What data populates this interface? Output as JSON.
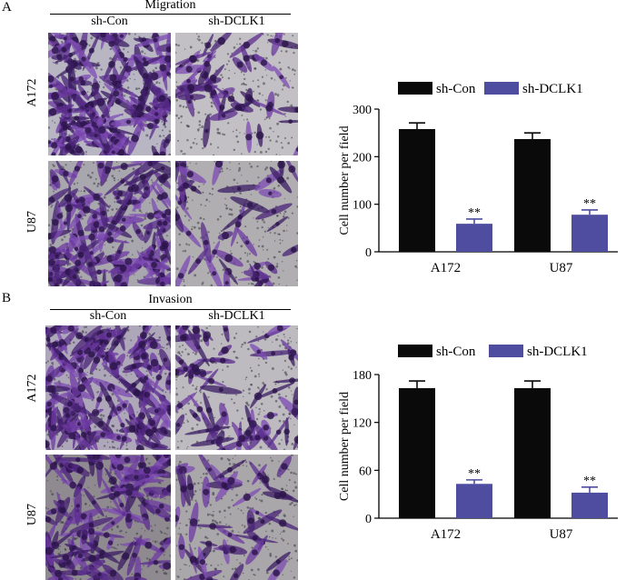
{
  "panelA": {
    "letter": "A",
    "title": "Migration",
    "columns": [
      "sh-Con",
      "sh-DCLK1"
    ],
    "rows": [
      "A172",
      "U87"
    ]
  },
  "panelB": {
    "letter": "B",
    "title": "Invasion",
    "columns": [
      "sh-Con",
      "sh-DCLK1"
    ],
    "rows": [
      "A172",
      "U87"
    ]
  },
  "colors": {
    "shCon": "#0a0a0a",
    "shDCLK1": "#4e4d9f"
  },
  "chart_data": [
    {
      "type": "bar",
      "title": "",
      "xlabel": "",
      "ylabel": "Cell number per field",
      "categories": [
        "A172",
        "U87"
      ],
      "series": [
        {
          "name": "sh-Con",
          "values": [
            258,
            237
          ],
          "errors": [
            13,
            13
          ],
          "color": "#0a0a0a",
          "annotations": [
            "",
            ""
          ]
        },
        {
          "name": "sh-DCLK1",
          "values": [
            59,
            78
          ],
          "errors": [
            10,
            10
          ],
          "color": "#4e4d9f",
          "annotations": [
            "**",
            "**"
          ]
        }
      ],
      "ylim": [
        0,
        300
      ],
      "yticks": [
        0,
        100,
        200,
        300
      ],
      "legend": "top",
      "grid": false
    },
    {
      "type": "bar",
      "title": "",
      "xlabel": "",
      "ylabel": "Cell number per field",
      "categories": [
        "A172",
        "U87"
      ],
      "series": [
        {
          "name": "sh-Con",
          "values": [
            163,
            163
          ],
          "errors": [
            9,
            9
          ],
          "color": "#0a0a0a",
          "annotations": [
            "",
            ""
          ]
        },
        {
          "name": "sh-DCLK1",
          "values": [
            43,
            32
          ],
          "errors": [
            5,
            7
          ],
          "color": "#4e4d9f",
          "annotations": [
            "**",
            "**"
          ]
        }
      ],
      "ylim": [
        0,
        180
      ],
      "yticks": [
        0,
        60,
        120,
        180
      ],
      "legend": "top",
      "grid": false
    }
  ]
}
